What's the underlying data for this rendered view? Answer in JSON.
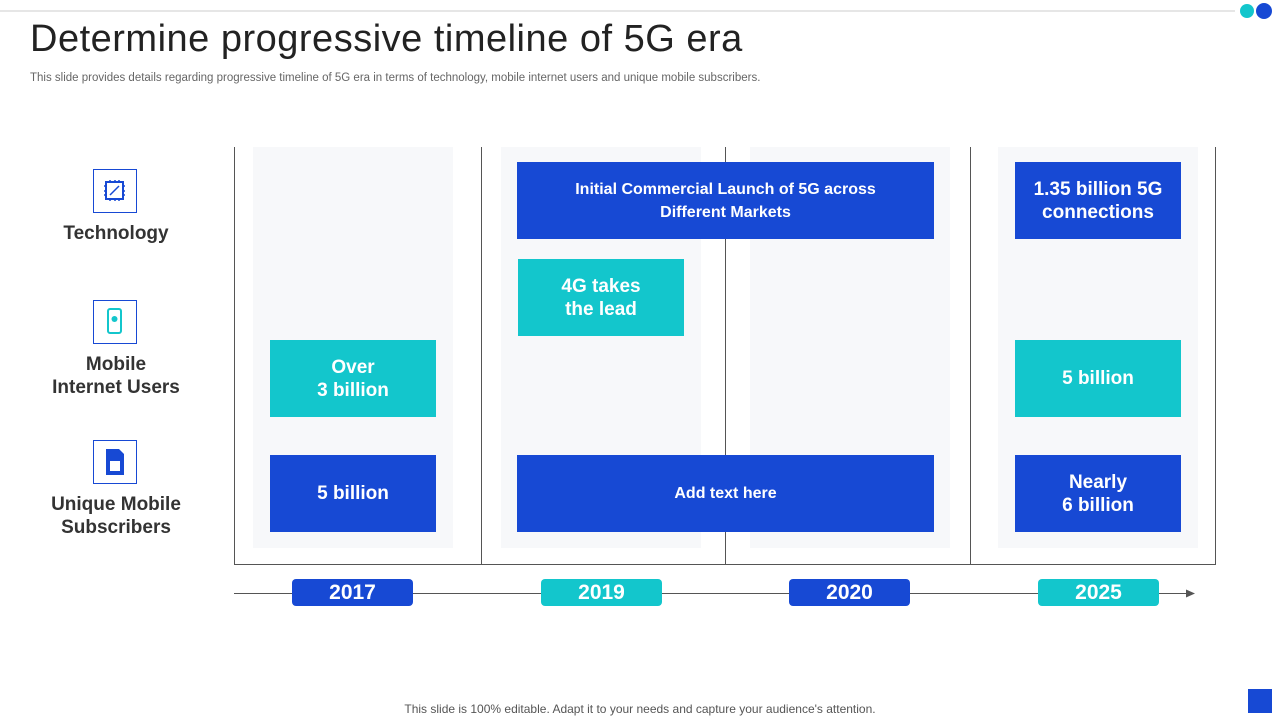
{
  "header": {
    "title": "Determine progressive timeline of 5G era",
    "subtitle": "This slide provides details regarding progressive timeline of 5G era in terms of technology, mobile internet users and unique mobile subscribers."
  },
  "rows": [
    {
      "lines": [
        "Technology"
      ]
    },
    {
      "lines": [
        "Mobile",
        "Internet Users"
      ]
    },
    {
      "lines": [
        "Unique Mobile",
        "Subscribers"
      ]
    }
  ],
  "years": [
    {
      "label": "2017",
      "color": "#1749d4"
    },
    {
      "label": "2019",
      "color": "#13c6cc"
    },
    {
      "label": "2020",
      "color": "#1749d4"
    },
    {
      "label": "2025",
      "color": "#13c6cc"
    }
  ],
  "boxes": [
    {
      "lines": [
        "Initial Commercial Launch of 5G across",
        "Different Markets"
      ],
      "color": "#1749d4"
    },
    {
      "lines": [
        "1.35 billion 5G",
        "connections"
      ],
      "color": "#1749d4"
    },
    {
      "lines": [
        "4G takes",
        "the lead"
      ],
      "color": "#13c6cc"
    },
    {
      "lines": [
        "Over",
        "3 billion"
      ],
      "color": "#13c6cc"
    },
    {
      "lines": [
        "5 billion"
      ],
      "color": "#13c6cc"
    },
    {
      "lines": [
        "5 billion"
      ],
      "color": "#1749d4"
    },
    {
      "lines": [
        "Add text here"
      ],
      "color": "#1749d4"
    },
    {
      "lines": [
        "Nearly",
        "6 billion"
      ],
      "color": "#1749d4"
    }
  ],
  "footer": "This slide is 100% editable. Adapt it to your needs and capture your audience's attention."
}
